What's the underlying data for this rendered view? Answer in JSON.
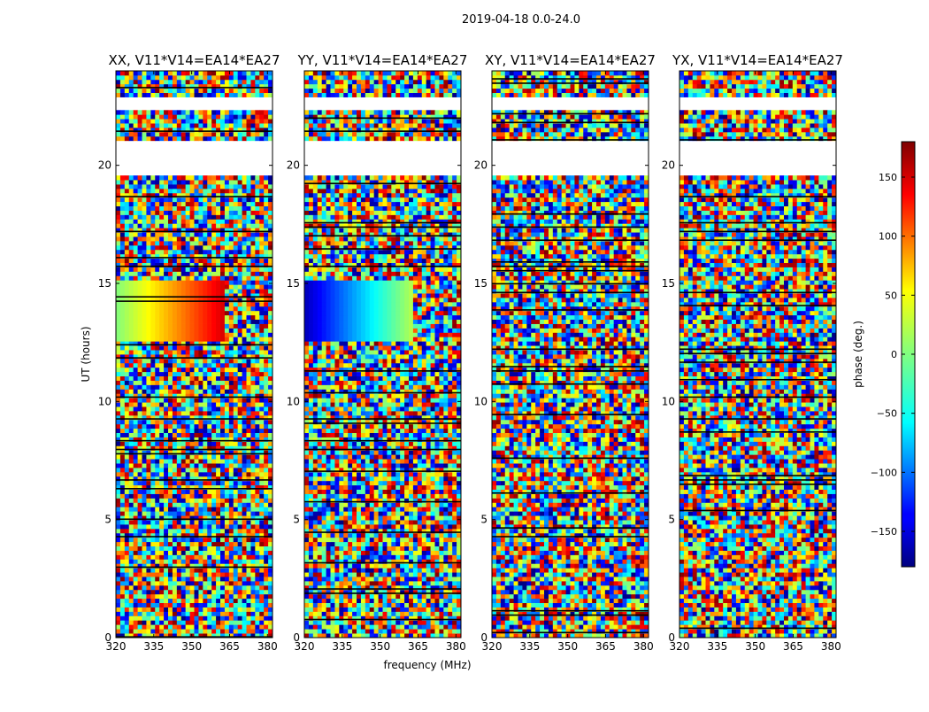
{
  "chart_data": {
    "type": "heatmap",
    "suptitle": "2019-04-18 0.0-24.0",
    "xlabel": "frequency (MHz)",
    "ylabel": "UT (hours)",
    "xlim": [
      320,
      382
    ],
    "ylim": [
      0,
      24
    ],
    "xticks": [
      320,
      335,
      350,
      365,
      380
    ],
    "yticks": [
      0,
      5,
      10,
      15,
      20
    ],
    "colorbar": {
      "label": "phase (deg.)",
      "colormap": "jet",
      "range": [
        -180,
        180
      ],
      "ticks": [
        -150,
        -100,
        -50,
        0,
        50,
        100,
        150
      ],
      "tick_labels": [
        "−150",
        "−100",
        "−50",
        "0",
        "50",
        "100",
        "150"
      ]
    },
    "panels": [
      {
        "title": "XX, V11*V14=EA14*EA27"
      },
      {
        "title": "YY, V11*V14=EA14*EA27"
      },
      {
        "title": "XY, V11*V14=EA14*EA27"
      },
      {
        "title": "YX, V11*V14=EA14*EA27"
      }
    ],
    "flagged_hours": [
      [
        19.6,
        21.0
      ],
      [
        22.3,
        22.9
      ],
      [
        23.25,
        23.35
      ]
    ],
    "coherent_phase": [
      {
        "panel": "XX",
        "hours": [
          12.4,
          15.0
        ],
        "freq_range": [
          320,
          363
        ],
        "phase_start": 0,
        "phase_end": 150
      },
      {
        "panel": "YY",
        "hours": [
          12.4,
          15.0
        ],
        "freq_range": [
          320,
          363
        ],
        "phase_start": -160,
        "phase_end": 20
      }
    ]
  }
}
